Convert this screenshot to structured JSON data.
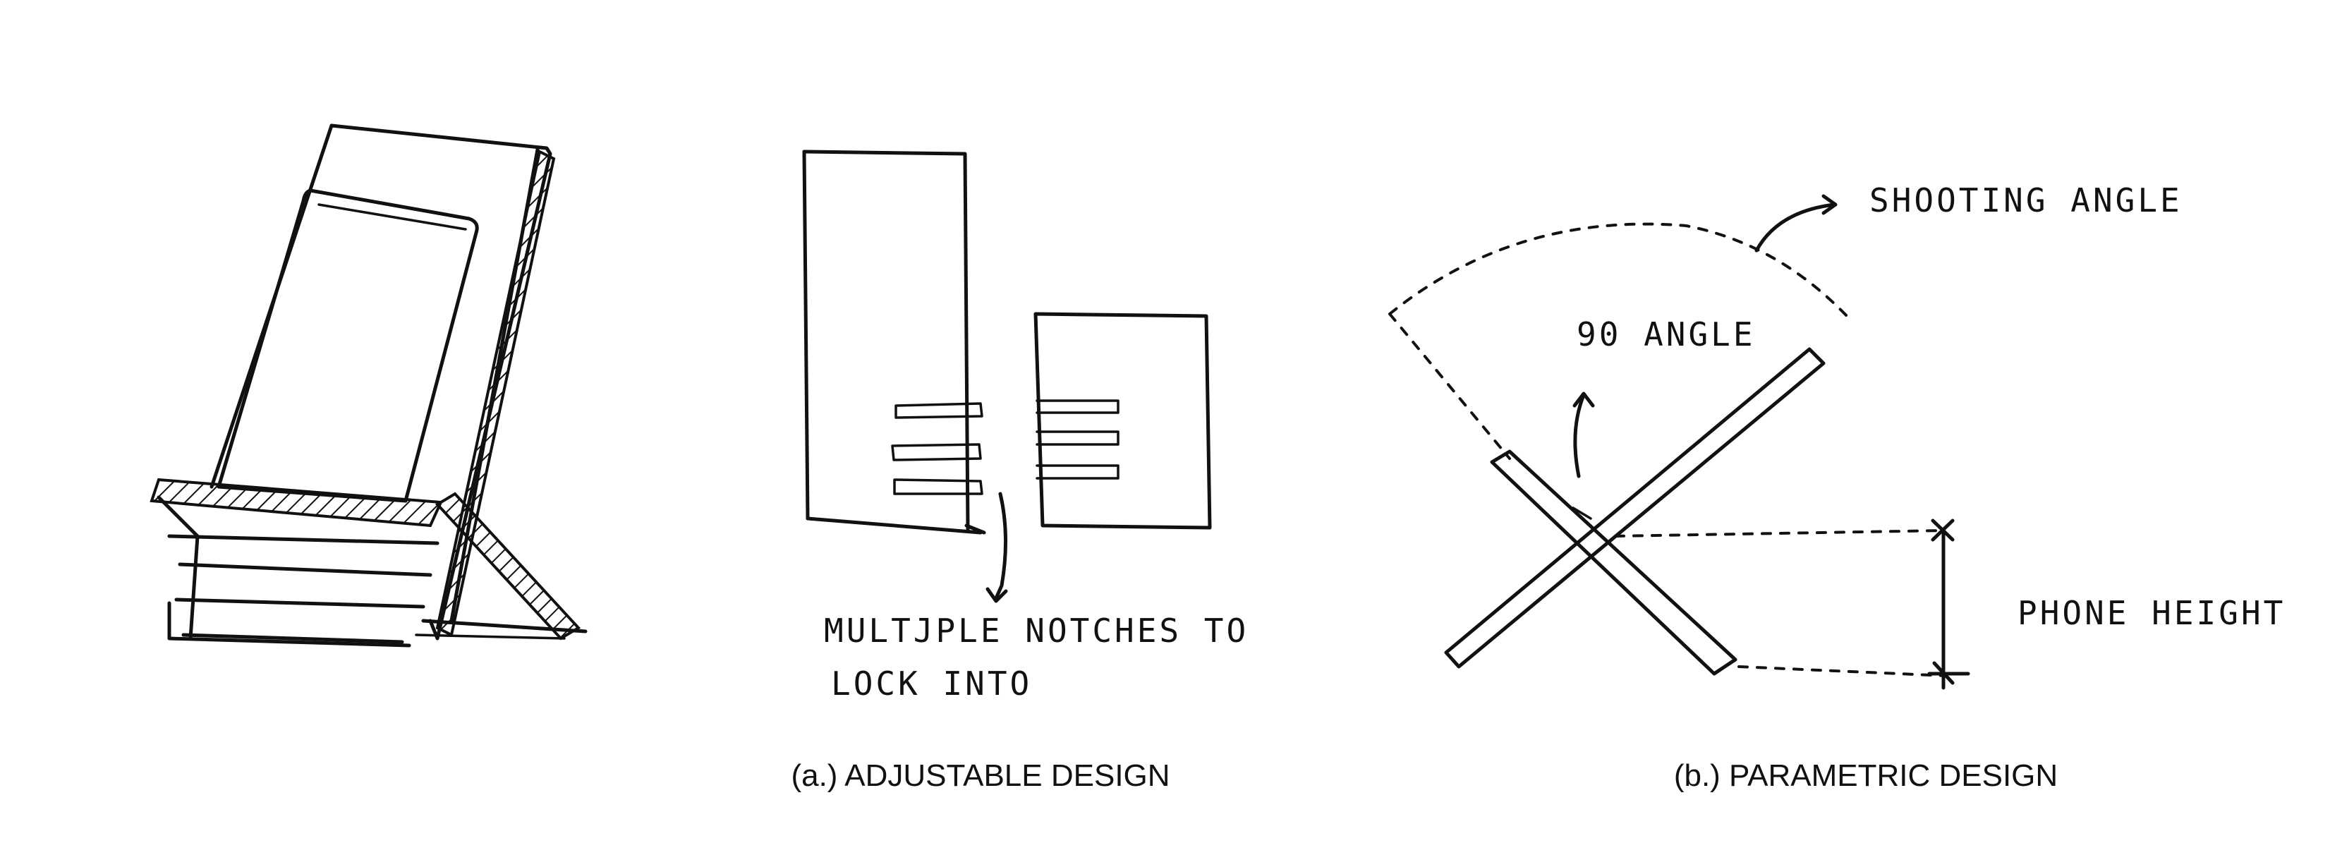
{
  "captions": {
    "adjustable": "(a.) ADJUSTABLE DESIGN",
    "parametric": "(b.) PARAMETRIC DESIGN"
  },
  "annotations": {
    "notches_line1": "MULTJPLE  NOTCHES TO",
    "notches_line2": "LOCK INTO",
    "shooting_angle": "SHOOTING ANGLE",
    "ninety_angle": "90 ANGLE",
    "phone_height": "PHONE HEIGHT"
  }
}
